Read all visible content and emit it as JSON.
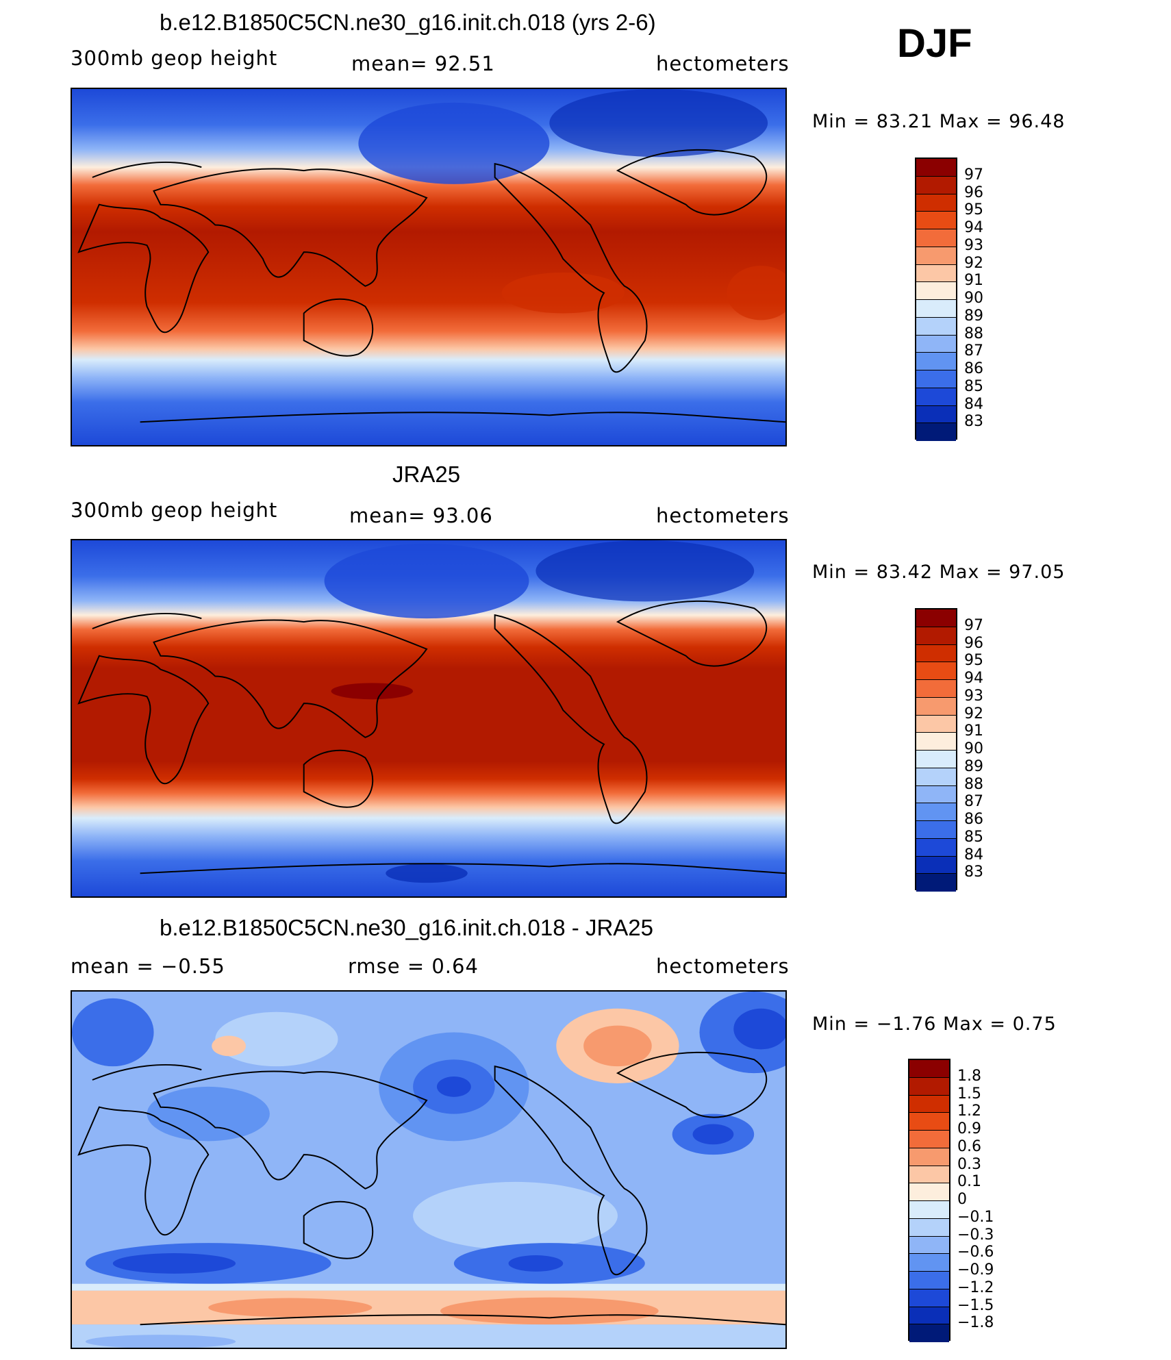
{
  "season": "DJF",
  "panels": [
    {
      "title": "b.e12.B1850C5CN.ne30_g16.init.ch.018 (yrs 2-6)",
      "left_label": "300mb  geop  height",
      "center_label": "mean=   92.51",
      "right_label": "hectometers",
      "minmax": "Min  =    83.21  Max  =    96.48",
      "legend_levels": [
        "97",
        "96",
        "95",
        "94",
        "93",
        "92",
        "91",
        "90",
        "89",
        "88",
        "87",
        "86",
        "85",
        "84",
        "83"
      ],
      "legend_colors": [
        "#8b0000",
        "#b21a00",
        "#cf2e00",
        "#e84c14",
        "#f26c3a",
        "#f79a6e",
        "#fcc7a6",
        "#fdeedd",
        "#d9ecfb",
        "#b4d2fa",
        "#8fb5f7",
        "#6194f2",
        "#3b6ee9",
        "#1d49d8",
        "#0a2fb8",
        "#001a78"
      ]
    },
    {
      "title": "JRA25",
      "left_label": "300mb  geop  height",
      "center_label": "mean=   93.06",
      "right_label": "hectometers",
      "minmax": "Min  =    83.42  Max  =    97.05",
      "legend_levels": [
        "97",
        "96",
        "95",
        "94",
        "93",
        "92",
        "91",
        "90",
        "89",
        "88",
        "87",
        "86",
        "85",
        "84",
        "83"
      ],
      "legend_colors": [
        "#8b0000",
        "#b21a00",
        "#cf2e00",
        "#e84c14",
        "#f26c3a",
        "#f79a6e",
        "#fcc7a6",
        "#fdeedd",
        "#d9ecfb",
        "#b4d2fa",
        "#8fb5f7",
        "#6194f2",
        "#3b6ee9",
        "#1d49d8",
        "#0a2fb8",
        "#001a78"
      ]
    },
    {
      "title": "b.e12.B1850C5CN.ne30_g16.init.ch.018 - JRA25",
      "left_label": "mean  =    −0.55",
      "center_label": "rmse  =     0.64",
      "right_label": "hectometers",
      "minmax": "Min  =    −1.76  Max  =      0.75",
      "legend_levels": [
        "1.8",
        "1.5",
        "1.2",
        "0.9",
        "0.6",
        "0.3",
        "0.1",
        "0",
        "−0.1",
        "−0.3",
        "−0.6",
        "−0.9",
        "−1.2",
        "−1.5",
        "−1.8"
      ],
      "legend_colors": [
        "#8b0000",
        "#b21a00",
        "#cf2e00",
        "#e84c14",
        "#f26c3a",
        "#f79a6e",
        "#fcc7a6",
        "#fdeedd",
        "#d9ecfb",
        "#b4d2fa",
        "#8fb5f7",
        "#6194f2",
        "#3b6ee9",
        "#1d49d8",
        "#0a2fb8",
        "#001a78"
      ]
    }
  ]
}
